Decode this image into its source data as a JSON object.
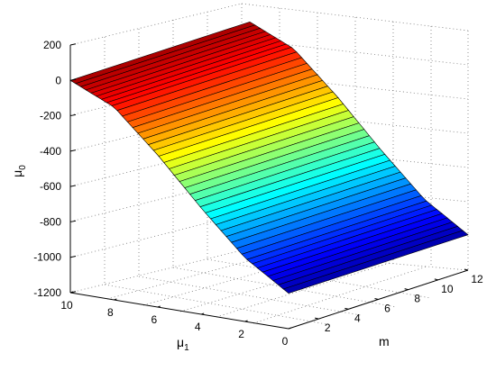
{
  "chart_data": {
    "type": "surface",
    "zlabel": "μ",
    "zlabel_sub": "0",
    "xlabel": "μ",
    "xlabel_sub": "1",
    "ylabel": "m",
    "z_ticks": [
      "200",
      "0",
      "-200",
      "-400",
      "-600",
      "-800",
      "-1000",
      "-1200"
    ],
    "z_range": [
      -1200,
      200
    ],
    "mu1_ticks": [
      "10",
      "8",
      "6",
      "4",
      "2",
      "0"
    ],
    "mu1_range": [
      0,
      10
    ],
    "m_ticks": [
      "2",
      "4",
      "6",
      "8",
      "10",
      "12"
    ],
    "m_range": [
      0,
      12
    ],
    "surface": {
      "mu1_samples": [
        0,
        2,
        4,
        6,
        8,
        10
      ],
      "z_at_mu1_samples": [
        -1000,
        -840,
        -600,
        -340,
        -110,
        0
      ],
      "m_extent": [
        0,
        12
      ]
    },
    "grid": true,
    "colormap": "jet"
  }
}
